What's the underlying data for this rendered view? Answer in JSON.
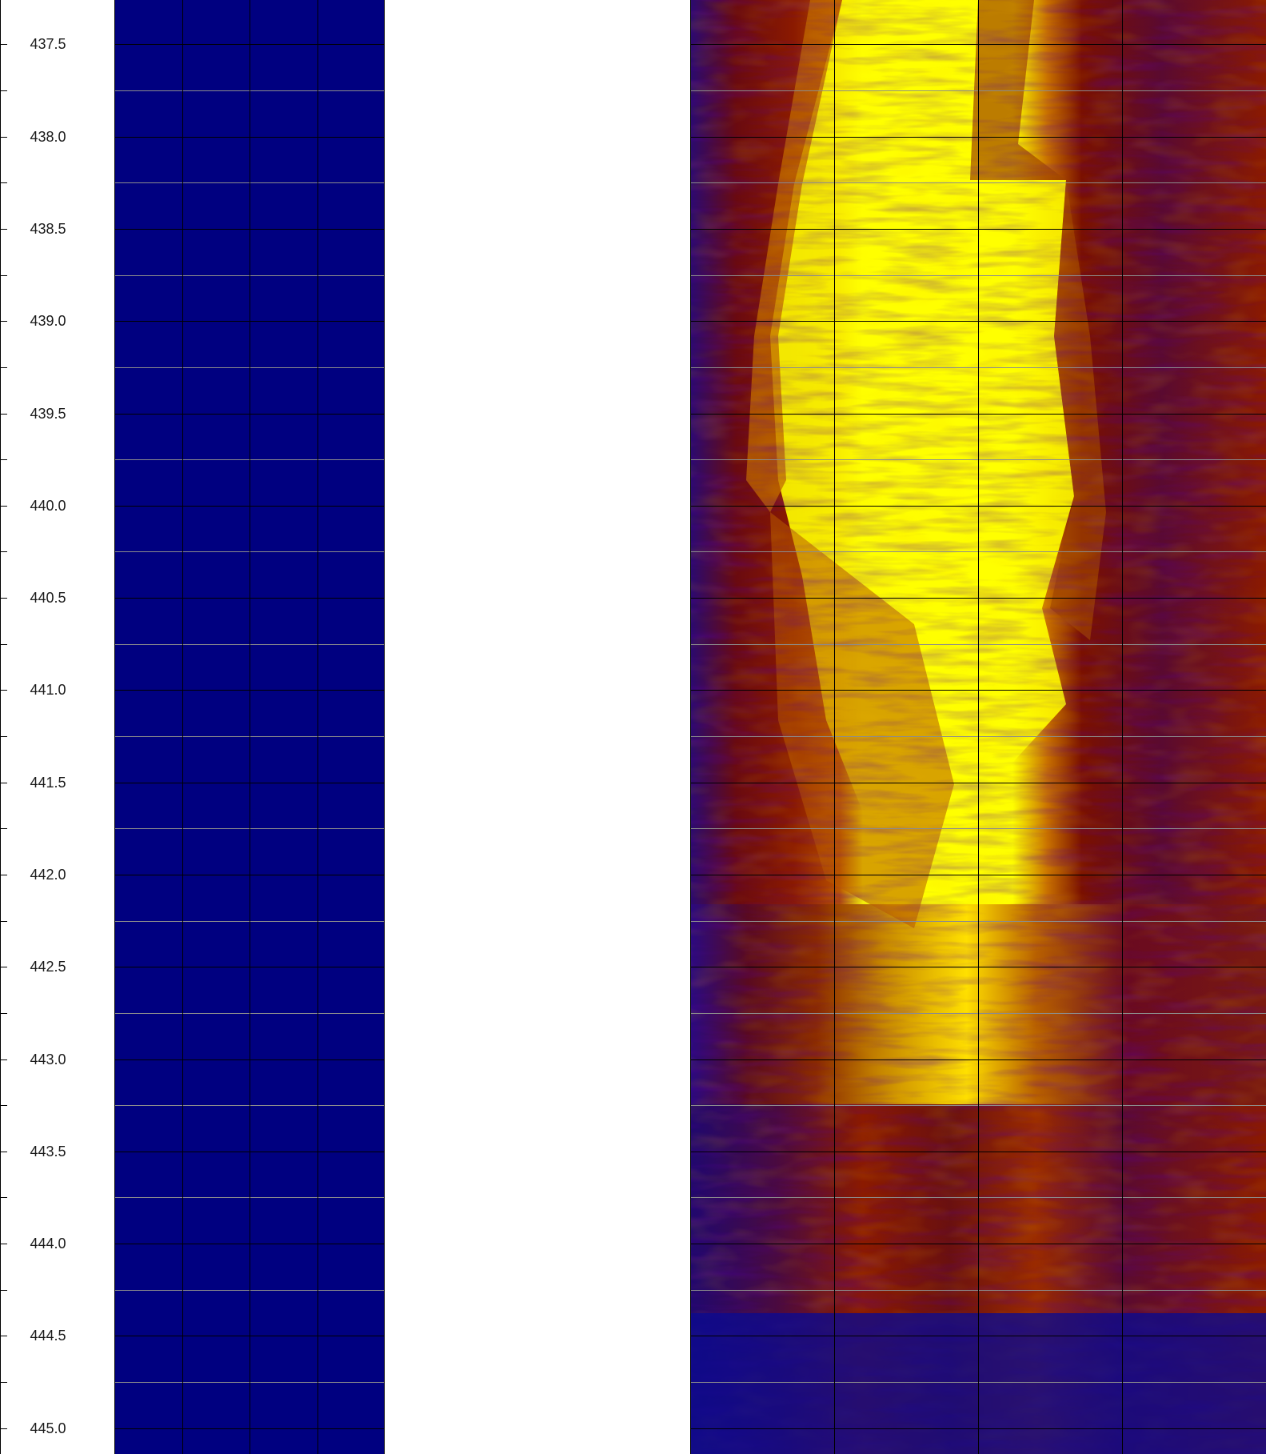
{
  "chart_data": {
    "type": "heatmap",
    "title": "",
    "xlabel": "",
    "ylabel": "",
    "depth_axis": {
      "ylim": [
        437.26,
        445.14
      ],
      "major_interval": 0.5,
      "minor_interval": 0.25,
      "tick_labels": [
        "437.5",
        "438.0",
        "438.5",
        "439.0",
        "439.5",
        "440.0",
        "440.5",
        "441.0",
        "441.5",
        "442.0",
        "442.5",
        "443.0",
        "443.5",
        "444.0",
        "444.5",
        "445.0"
      ]
    },
    "tracks": [
      {
        "name": "",
        "fill_color": "#000080",
        "vertical_grid_divisions": 4,
        "grid": true
      },
      {
        "name": "",
        "type": "image-log",
        "colormap": [
          "#1a0a80",
          "#5a0a20",
          "#8b1a00",
          "#c86400",
          "#ffff00"
        ],
        "vertical_grid_divisions": 4,
        "grid": true,
        "features": {
          "bright_band_depths": [
            437.26,
            441.5
          ],
          "dark_low_band_start_depth": 444.39
        }
      }
    ]
  },
  "colors": {
    "background": "#ffffff",
    "grid_major": "#000000",
    "grid_minor": "#8c8c8c",
    "track_fill": "#000080"
  }
}
